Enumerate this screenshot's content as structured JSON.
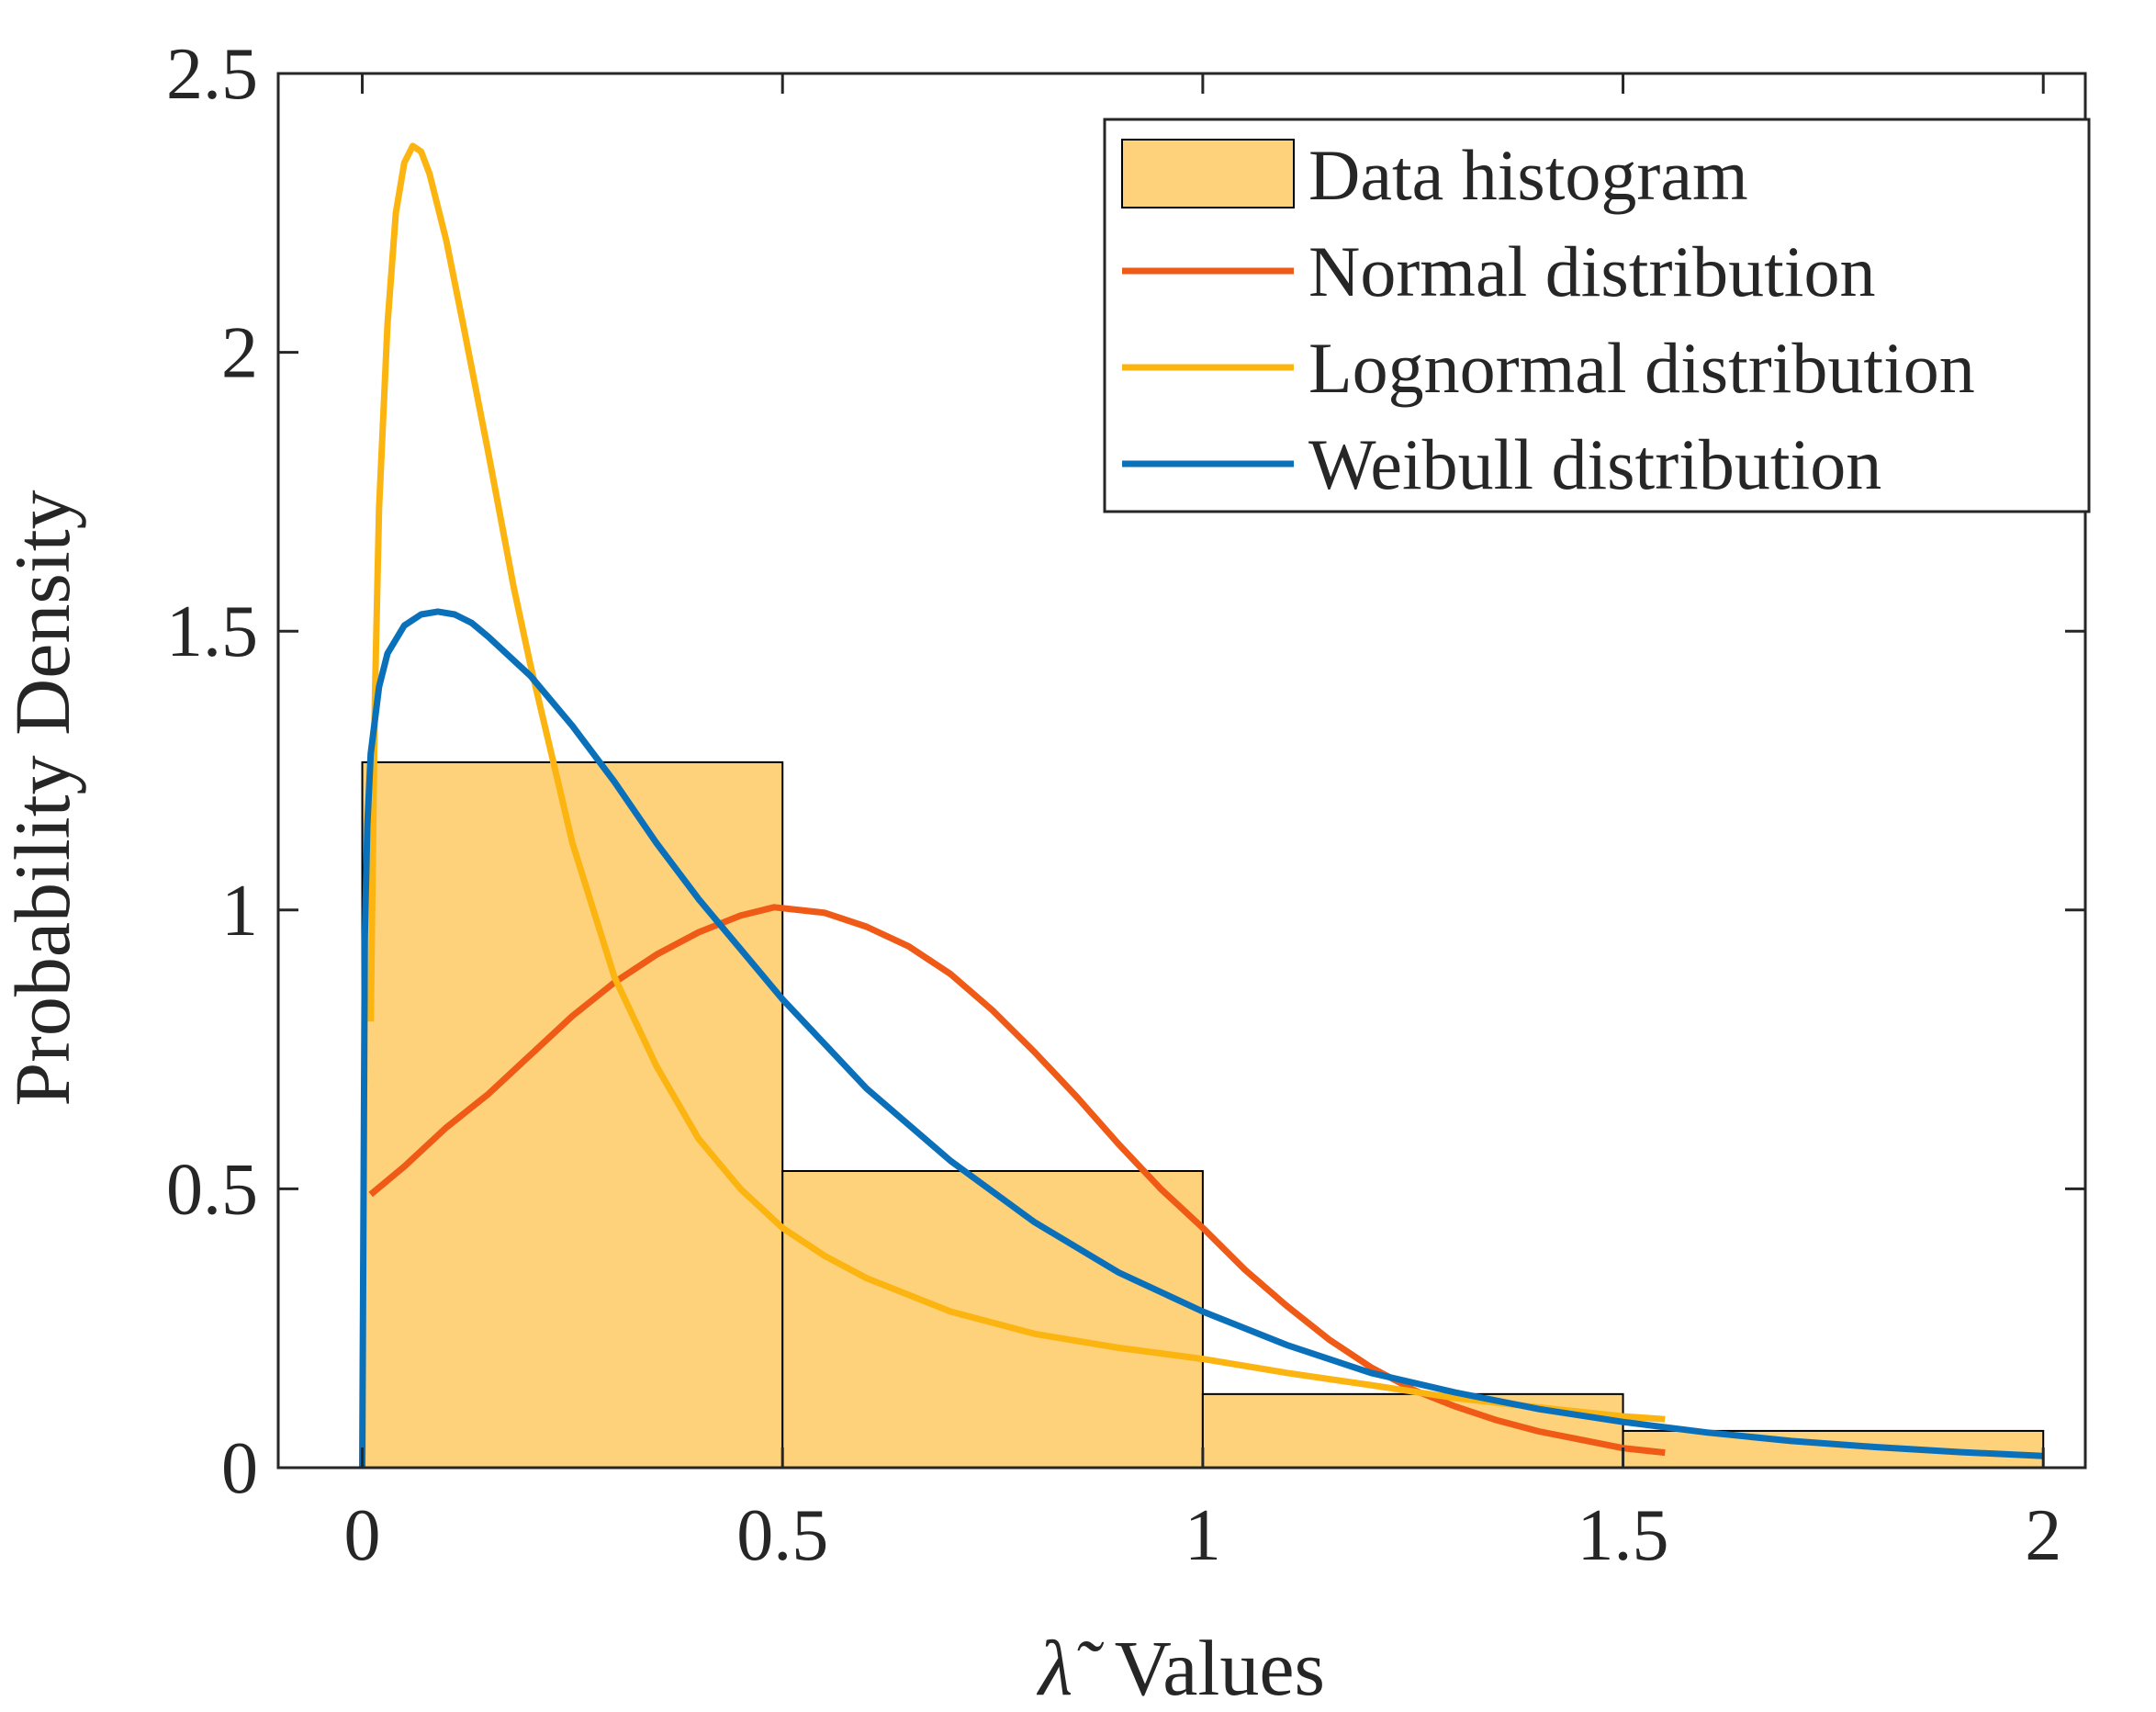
{
  "chart_data": {
    "type": "histogram+line",
    "xlabel_symbol": "λ̃",
    "xlabel_text": "Values",
    "ylabel": "Probability Density",
    "xlim": [
      -0.1,
      2.05
    ],
    "ylim": [
      0,
      2.5
    ],
    "xticks": [
      0,
      0.5,
      1,
      1.5,
      2
    ],
    "xtick_labels": [
      "0",
      "0.5",
      "1",
      "1.5",
      "2"
    ],
    "yticks": [
      0,
      0.5,
      1,
      1.5,
      2,
      2.5
    ],
    "ytick_labels": [
      "0",
      "0.5",
      "1",
      "1.5",
      "2",
      "2.5"
    ],
    "legend_position": "top-right",
    "histogram": {
      "name": "Data histogram",
      "color": "#FDD27A",
      "edge_color": "#000000",
      "bins": [
        {
          "x0": 0.0,
          "x1": 0.5,
          "value": 1.265
        },
        {
          "x0": 0.5,
          "x1": 1.0,
          "value": 0.532
        },
        {
          "x0": 1.0,
          "x1": 1.5,
          "value": 0.132
        },
        {
          "x0": 1.5,
          "x1": 2.0,
          "value": 0.066
        }
      ]
    },
    "series": [
      {
        "name": "Normal distribution",
        "color": "#EF5A16",
        "x": [
          0.01,
          0.05,
          0.1,
          0.15,
          0.2,
          0.25,
          0.3,
          0.35,
          0.4,
          0.45,
          0.49,
          0.55,
          0.6,
          0.65,
          0.7,
          0.75,
          0.8,
          0.85,
          0.9,
          0.95,
          1.0,
          1.05,
          1.1,
          1.15,
          1.2,
          1.25,
          1.3,
          1.35,
          1.4,
          1.45,
          1.5,
          1.55
        ],
        "y": [
          0.49,
          0.54,
          0.61,
          0.67,
          0.74,
          0.81,
          0.87,
          0.92,
          0.96,
          0.99,
          1.005,
          0.995,
          0.97,
          0.935,
          0.885,
          0.82,
          0.745,
          0.665,
          0.58,
          0.5,
          0.43,
          0.355,
          0.29,
          0.23,
          0.18,
          0.14,
          0.11,
          0.085,
          0.065,
          0.05,
          0.035,
          0.027
        ]
      },
      {
        "name": "Lognormal distribution",
        "color": "#FBB410",
        "x": [
          0.01,
          0.015,
          0.02,
          0.03,
          0.04,
          0.05,
          0.06,
          0.07,
          0.08,
          0.1,
          0.12,
          0.15,
          0.18,
          0.2,
          0.25,
          0.3,
          0.35,
          0.4,
          0.45,
          0.5,
          0.55,
          0.6,
          0.7,
          0.8,
          0.9,
          1.0,
          1.1,
          1.2,
          1.3,
          1.4,
          1.5,
          1.55
        ],
        "y": [
          0.8,
          1.38,
          1.72,
          2.05,
          2.25,
          2.34,
          2.37,
          2.36,
          2.32,
          2.2,
          2.05,
          1.82,
          1.58,
          1.44,
          1.12,
          0.88,
          0.72,
          0.59,
          0.5,
          0.43,
          0.38,
          0.34,
          0.28,
          0.24,
          0.215,
          0.195,
          0.17,
          0.148,
          0.125,
          0.108,
          0.092,
          0.087
        ]
      },
      {
        "name": "Weibull distribution",
        "color": "#0B70BA",
        "x": [
          0.0,
          0.003,
          0.006,
          0.01,
          0.02,
          0.03,
          0.05,
          0.07,
          0.09,
          0.11,
          0.13,
          0.15,
          0.2,
          0.25,
          0.3,
          0.35,
          0.4,
          0.45,
          0.5,
          0.6,
          0.7,
          0.8,
          0.9,
          1.0,
          1.1,
          1.2,
          1.3,
          1.4,
          1.5,
          1.6,
          1.7,
          1.8,
          1.9,
          2.0
        ],
        "y": [
          0.0,
          0.95,
          1.15,
          1.28,
          1.4,
          1.46,
          1.51,
          1.53,
          1.535,
          1.53,
          1.515,
          1.49,
          1.42,
          1.33,
          1.23,
          1.12,
          1.02,
          0.93,
          0.84,
          0.68,
          0.55,
          0.44,
          0.35,
          0.28,
          0.22,
          0.17,
          0.135,
          0.105,
          0.082,
          0.063,
          0.048,
          0.037,
          0.028,
          0.021
        ]
      }
    ]
  }
}
